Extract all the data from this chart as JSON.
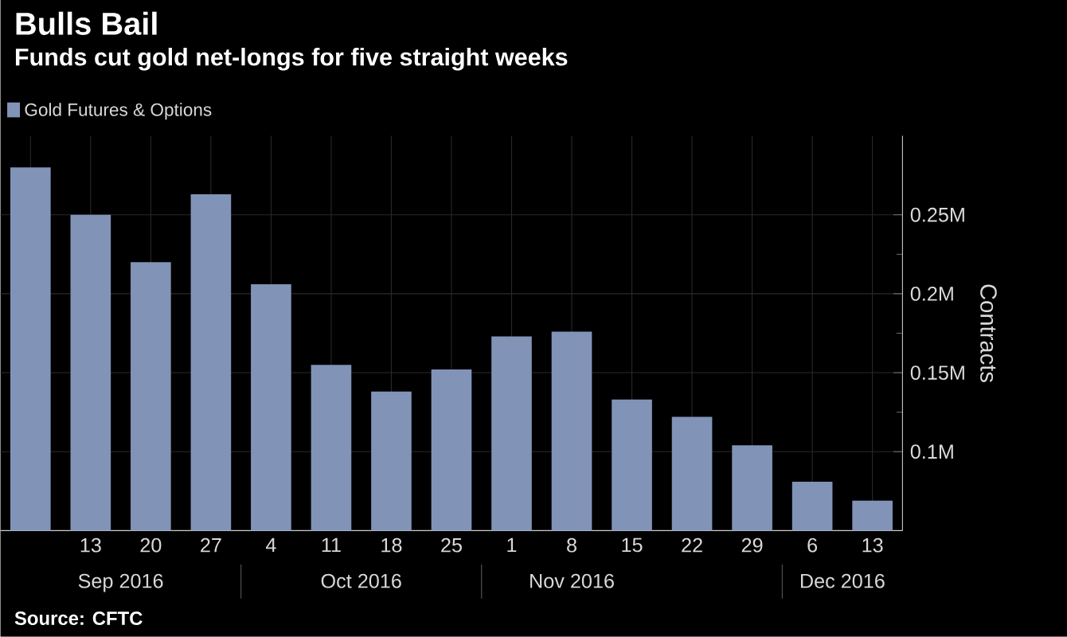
{
  "chart_data": {
    "type": "bar",
    "title": "Bulls Bail",
    "subtitle": "Funds cut gold net-longs for five straight weeks",
    "categories": [
      null,
      "13",
      "20",
      "27",
      "4",
      "11",
      "18",
      "25",
      "1",
      "8",
      "15",
      "22",
      "29",
      "6",
      "13"
    ],
    "series": [
      {
        "name": "Gold Futures & Options",
        "color": "#8293b8",
        "values": [
          0.28,
          0.25,
          0.22,
          0.263,
          0.206,
          0.155,
          0.138,
          0.152,
          0.173,
          0.176,
          0.133,
          0.122,
          0.104,
          0.081,
          0.069
        ]
      }
    ],
    "ylabel": "Contracts",
    "ylim": [
      0.05,
      0.3
    ],
    "yticks": [
      {
        "value": 0.1,
        "label": "0.1M"
      },
      {
        "value": 0.15,
        "label": "0.15M"
      },
      {
        "value": 0.2,
        "label": "0.2M"
      },
      {
        "value": 0.25,
        "label": "0.25M"
      }
    ],
    "grid": true,
    "legend": "top left",
    "annotations": [
      "Sep 2016",
      "Oct 2016",
      "Nov 2016",
      "Dec 2016",
      "Source: CFTC"
    ]
  }
}
